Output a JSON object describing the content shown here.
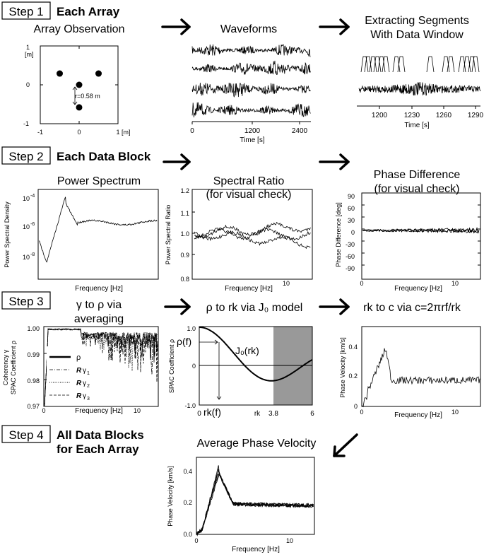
{
  "steps": [
    {
      "label": "Step 1",
      "title": "Each Array"
    },
    {
      "label": "Step 2",
      "title": "Each Data Block"
    },
    {
      "label": "Step 3"
    },
    {
      "label": "Step 4",
      "title_line1": "All Data Blocks",
      "title_line2": "for Each Array"
    }
  ],
  "panels": {
    "array": {
      "title": "Array Observation",
      "unit_y": "[m]",
      "unit_x": "[m]",
      "radius_label": "r=0.58 m",
      "ticks_y": [
        "1",
        "0",
        "-1"
      ],
      "ticks_x": [
        "-1",
        "0",
        "1"
      ],
      "sensors": [
        [
          -0.5,
          0.29
        ],
        [
          0.5,
          0.29
        ],
        [
          0,
          0
        ],
        [
          0,
          -0.58
        ]
      ]
    },
    "waveforms": {
      "title": "Waveforms",
      "xlabel": "Time [s]",
      "ticks": [
        "0",
        "1200",
        "2400"
      ],
      "traces": 4
    },
    "segments": {
      "title_line1": "Extracting Segments",
      "title_line2": "With Data Window",
      "xlabel": "Time [s]",
      "ticks": [
        "1200",
        "1230",
        "1260",
        "1290"
      ]
    },
    "power": {
      "title": "Power Spectrum",
      "ylabel": "Power Spectral Density",
      "xlabel": "Frequency [Hz]",
      "yticks": [
        "10",
        "10",
        "10"
      ],
      "yexp": [
        "-4",
        "-6",
        "-8"
      ]
    },
    "ratio": {
      "title_line1": "Spectral Ratio",
      "title_line2": "(for visual check)",
      "ylabel": "Power Spectral Ratio",
      "xlabel": "Frequency [Hz]",
      "yticks": [
        "1.2",
        "1.1",
        "1.0",
        "0.9",
        "0.8"
      ],
      "xticks": [
        "10"
      ]
    },
    "phase": {
      "title_line1": "Phase Difference",
      "title_line2": "(for visual check)",
      "ylabel": "Phase Difference [deg]",
      "xlabel": "Frequency [Hz]",
      "yticks": [
        "90",
        "60",
        "30",
        "0",
        "-30",
        "-60",
        "-90"
      ],
      "xticks": [
        "0",
        "10"
      ]
    },
    "coherency": {
      "title_line1": "γ to ρ via",
      "title_line2": "averaging",
      "ylabel_line1": "Coherency γ",
      "ylabel_line2": "SPAC Coefficient ρ",
      "xlabel": "Frequency [Hz]",
      "yticks": [
        "1.00",
        "0.99",
        "0.98",
        "0.97"
      ],
      "xticks": [
        "0",
        "10"
      ],
      "legend": [
        {
          "sym": "ρ"
        },
        {
          "sym": "R",
          "greek": "γ",
          "sub": "1"
        },
        {
          "sym": "R",
          "greek": "γ",
          "sub": "2"
        },
        {
          "sym": "R",
          "greek": "γ",
          "sub": "3"
        }
      ]
    },
    "bessel": {
      "title": "ρ to rk via J₀ model",
      "ylabel": "SPAC Coefficient ρ",
      "yticks": [
        "1.0",
        "0",
        "-1.0"
      ],
      "xticks": [
        "0",
        "3.8",
        "6"
      ],
      "rk_axis_label": "rk",
      "curve_label": "J₀(rk)",
      "rho_label": "ρ(f)",
      "rkf_label": "rk(f)"
    },
    "velocity": {
      "title": "rk to c via c=2πrf/rk",
      "ylabel": "Phase Velocity [km/s]",
      "xlabel": "Frequency [Hz]",
      "yticks": [
        "0.4",
        "0.2",
        "0"
      ],
      "xticks": [
        "0",
        "10"
      ]
    },
    "average": {
      "title": "Average Phase Velocity",
      "ylabel": "Phase Velocity [km/s]",
      "xlabel": "Frequency [Hz]",
      "yticks": [
        "0.4",
        "0.2",
        "0.0"
      ],
      "xticks": [
        "0",
        "10"
      ]
    }
  }
}
